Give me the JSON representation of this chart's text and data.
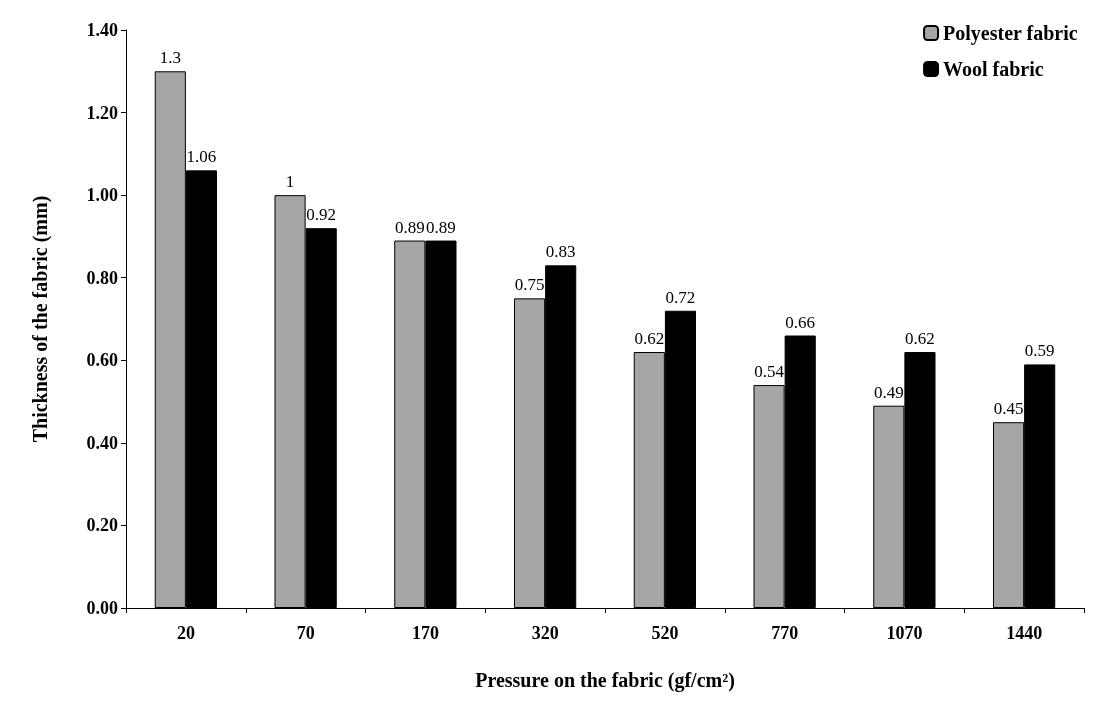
{
  "chart_data": {
    "type": "bar",
    "xlabel": "Pressure on the fabric (gf/cm²)",
    "ylabel": "Thickness of the fabric (mm)",
    "categories": [
      "20",
      "70",
      "170",
      "320",
      "520",
      "770",
      "1070",
      "1440"
    ],
    "series": [
      {
        "name": "Polyester fabric",
        "color": "#a6a6a6",
        "values": [
          1.3,
          1,
          0.89,
          0.75,
          0.62,
          0.54,
          0.49,
          0.45
        ]
      },
      {
        "name": "Wool fabric",
        "color": "#000000",
        "values": [
          1.06,
          0.92,
          0.89,
          0.83,
          0.72,
          0.66,
          0.62,
          0.59
        ]
      }
    ],
    "ylim": [
      0,
      1.4
    ],
    "yticks": [
      {
        "value": 0,
        "label": "0.00"
      },
      {
        "value": 0.2,
        "label": "0.20"
      },
      {
        "value": 0.4,
        "label": "0.40"
      },
      {
        "value": 0.6,
        "label": "0.60"
      },
      {
        "value": 0.8,
        "label": "0.80"
      },
      {
        "value": 1,
        "label": "1.00"
      },
      {
        "value": 1.2,
        "label": "1.20"
      },
      {
        "value": 1.4,
        "label": "1.40"
      }
    ],
    "data_labels": true,
    "legend": "top right",
    "grid": false
  }
}
